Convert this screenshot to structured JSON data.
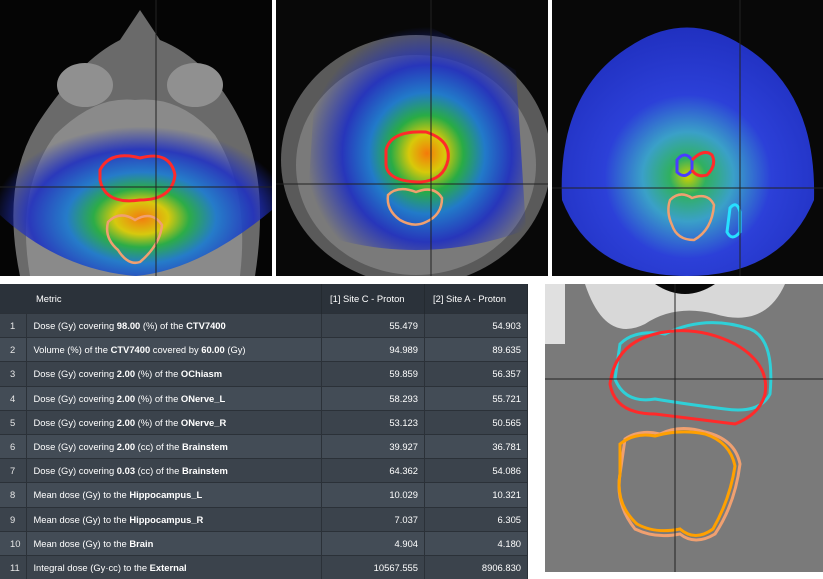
{
  "table": {
    "headers": [
      "Metric",
      "[1] Site C - Proton",
      "[2] Site A - Proton"
    ],
    "rows": [
      {
        "idx": "1",
        "pre": "Dose (Gy) covering ",
        "b1": "98.00",
        "mid": " (%) of the ",
        "b2": "CTV7400",
        "post": "",
        "v1": "55.479",
        "v2": "54.903"
      },
      {
        "idx": "2",
        "pre": "Volume (%) of the ",
        "b1": "CTV7400",
        "mid": " covered by ",
        "b2": "60.00",
        "post": " (Gy)",
        "v1": "94.989",
        "v2": "89.635"
      },
      {
        "idx": "3",
        "pre": "Dose (Gy) covering ",
        "b1": "2.00",
        "mid": " (%) of the ",
        "b2": "OChiasm",
        "post": "",
        "v1": "59.859",
        "v2": "56.357"
      },
      {
        "idx": "4",
        "pre": "Dose (Gy) covering ",
        "b1": "2.00",
        "mid": " (%) of the ",
        "b2": "ONerve_L",
        "post": "",
        "v1": "58.293",
        "v2": "55.721"
      },
      {
        "idx": "5",
        "pre": "Dose (Gy) covering ",
        "b1": "2.00",
        "mid": " (%) of the ",
        "b2": "ONerve_R",
        "post": "",
        "v1": "53.123",
        "v2": "50.565"
      },
      {
        "idx": "6",
        "pre": "Dose (Gy) covering ",
        "b1": "2.00",
        "mid": " (cc) of the ",
        "b2": "Brainstem",
        "post": "",
        "v1": "39.927",
        "v2": "36.781"
      },
      {
        "idx": "7",
        "pre": "Dose (Gy) covering ",
        "b1": "0.03",
        "mid": " (cc) of the ",
        "b2": "Brainstem",
        "post": "",
        "v1": "64.362",
        "v2": "54.086"
      },
      {
        "idx": "8",
        "pre": "Mean dose (Gy) to the ",
        "b1": "Hippocampus_L",
        "mid": "",
        "b2": "",
        "post": "",
        "v1": "10.029",
        "v2": "10.321"
      },
      {
        "idx": "9",
        "pre": "Mean dose (Gy) to the ",
        "b1": "Hippocampus_R",
        "mid": "",
        "b2": "",
        "post": "",
        "v1": "7.037",
        "v2": "6.305"
      },
      {
        "idx": "10",
        "pre": "Mean dose (Gy) to the ",
        "b1": "Brain",
        "mid": "",
        "b2": "",
        "post": "",
        "v1": "4.904",
        "v2": "4.180"
      },
      {
        "idx": "11",
        "pre": "Integral dose (Gy·cc) to the ",
        "b1": "External",
        "mid": "",
        "b2": "",
        "post": "",
        "v1": "10567.555",
        "v2": "8906.830"
      }
    ]
  },
  "colors": {
    "ctv_contour": "#ff2a2a",
    "brainstem_contour": "#f0a070",
    "chiasm_contour": "#4a3cff",
    "hippocampus_contour": "#27e0ff",
    "compare_contour": "#2fd0d8",
    "brainstem_alt": "#ffa000"
  },
  "icons": {
    "crosshair": "crosshair-lines"
  }
}
